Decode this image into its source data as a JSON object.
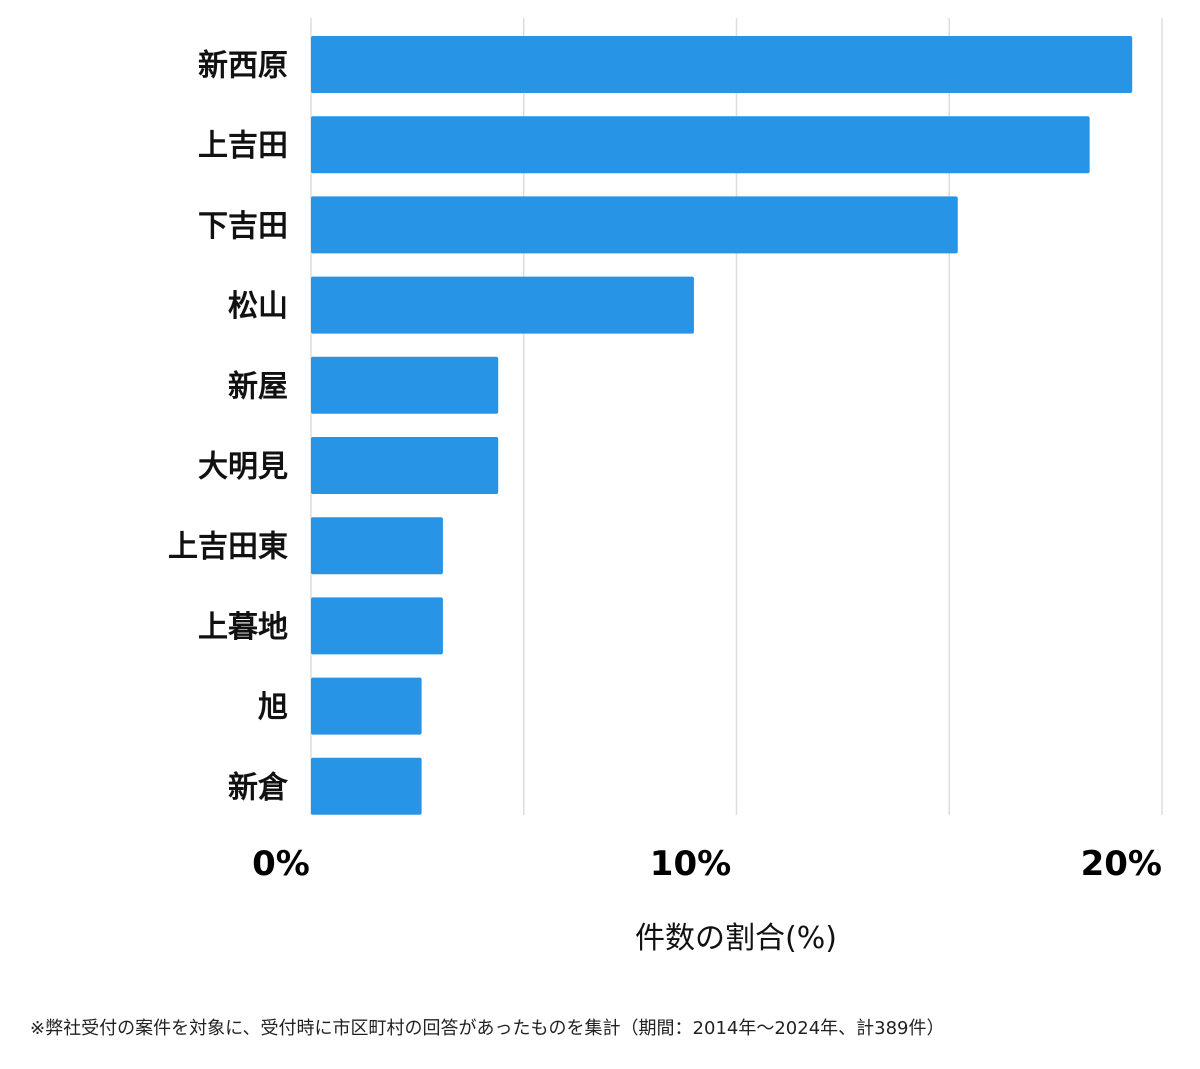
{
  "chart_data": {
    "type": "bar",
    "orientation": "horizontal",
    "categories": [
      "新西原",
      "上吉田",
      "下吉田",
      "松山",
      "新屋",
      "大明見",
      "上吉田東",
      "上暮地",
      "旭",
      "新倉"
    ],
    "values": [
      19.3,
      18.3,
      15.2,
      9.0,
      4.4,
      4.4,
      3.1,
      3.1,
      2.6,
      2.6
    ],
    "xlabel": "件数の割合(%)",
    "xlim": [
      0,
      20
    ],
    "xticks": [
      0,
      10,
      20
    ],
    "xtick_labels": [
      "0%",
      "10%",
      "20%"
    ],
    "minor_gridlines": [
      5,
      15
    ],
    "grid": true,
    "bar_color": "#2894e6",
    "grid_color": "#dddddd"
  },
  "footnote": "※弊社受付の案件を対象に、受付時に市区町村の回答があったものを集計（期間：2014年～2024年、計389件）"
}
